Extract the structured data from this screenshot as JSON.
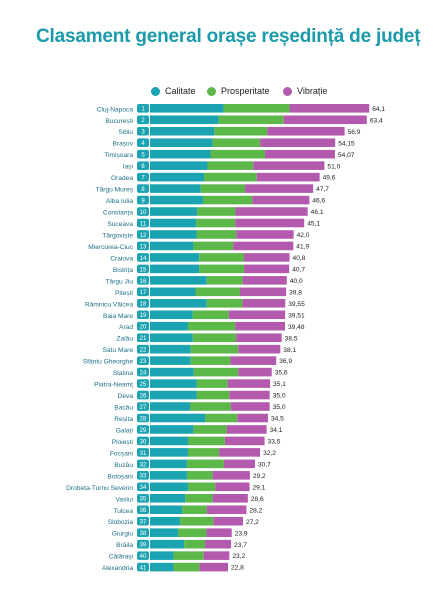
{
  "title": "Clasament general orașe reședință de județ",
  "colors": {
    "title": "#1a9aaa",
    "calitate": "#1ba3b2",
    "prosperitate": "#5db84a",
    "vibratie": "#b45aae",
    "rank_badge": "#1ba3b2"
  },
  "chart_data": {
    "type": "bar",
    "stacked": true,
    "orientation": "horizontal",
    "title": "Clasament general orașe reședință de județ",
    "legend_position": "top",
    "grid": false,
    "series_names": [
      "Calitate",
      "Prosperitate",
      "Vibrație"
    ],
    "rows": [
      {
        "rank": "1",
        "city": "Cluj-Napoca",
        "total": "64,1",
        "calitate": 21.5,
        "prosperitate": 19.3,
        "vibratie": 23.3
      },
      {
        "rank": "2",
        "city": "București",
        "total": "63,4",
        "calitate": 20.1,
        "prosperitate": 19.0,
        "vibratie": 24.3
      },
      {
        "rank": "3",
        "city": "Sibiu",
        "total": "56,9",
        "calitate": 18.8,
        "prosperitate": 15.5,
        "vibratie": 22.6
      },
      {
        "rank": "4",
        "city": "Brașov",
        "total": "54,15",
        "calitate": 18.3,
        "prosperitate": 13.9,
        "vibratie": 21.95
      },
      {
        "rank": "5",
        "city": "Timișoara",
        "total": "54,07",
        "calitate": 17.7,
        "prosperitate": 15.9,
        "vibratie": 20.47
      },
      {
        "rank": "6",
        "city": "Iași",
        "total": "51,0",
        "calitate": 16.8,
        "prosperitate": 13.4,
        "vibratie": 20.8
      },
      {
        "rank": "7",
        "city": "Oradea",
        "total": "49,6",
        "calitate": 15.8,
        "prosperitate": 15.4,
        "vibratie": 18.4
      },
      {
        "rank": "8",
        "city": "Târgu Mureș",
        "total": "47,7",
        "calitate": 14.8,
        "prosperitate": 13.0,
        "vibratie": 19.9
      },
      {
        "rank": "9",
        "city": "Alba Iulia",
        "total": "46,6",
        "calitate": 15.5,
        "prosperitate": 14.4,
        "vibratie": 16.7
      },
      {
        "rank": "10",
        "city": "Constanța",
        "total": "46,1",
        "calitate": 13.8,
        "prosperitate": 11.2,
        "vibratie": 21.1
      },
      {
        "rank": "11",
        "city": "Suceava",
        "total": "45,1",
        "calitate": 13.5,
        "prosperitate": 11.4,
        "vibratie": 20.2
      },
      {
        "rank": "12",
        "city": "Târgoviște",
        "total": "42,0",
        "calitate": 13.6,
        "prosperitate": 11.6,
        "vibratie": 16.8
      },
      {
        "rank": "13",
        "city": "Miercurea-Ciuc",
        "total": "41,9",
        "calitate": 12.7,
        "prosperitate": 11.6,
        "vibratie": 17.6
      },
      {
        "rank": "14",
        "city": "Craiova",
        "total": "40,8",
        "calitate": 14.4,
        "prosperitate": 13.1,
        "vibratie": 13.3
      },
      {
        "rank": "15",
        "city": "Bistrița",
        "total": "40,7",
        "calitate": 14.4,
        "prosperitate": 13.1,
        "vibratie": 13.2
      },
      {
        "rank": "16",
        "city": "Târgu Jiu",
        "total": "40,0",
        "calitate": 16.6,
        "prosperitate": 10.5,
        "vibratie": 12.9
      },
      {
        "rank": "17",
        "city": "Pitești",
        "total": "39,8",
        "calitate": 13.3,
        "prosperitate": 13.0,
        "vibratie": 13.5
      },
      {
        "rank": "18",
        "city": "Râmnicu Vâlcea",
        "total": "39,55",
        "calitate": 16.6,
        "prosperitate": 10.5,
        "vibratie": 12.45
      },
      {
        "rank": "19",
        "city": "Baia Mare",
        "total": "39,51",
        "calitate": 12.5,
        "prosperitate": 10.5,
        "vibratie": 16.51
      },
      {
        "rank": "20",
        "city": "Arad",
        "total": "39,48",
        "calitate": 11.1,
        "prosperitate": 13.8,
        "vibratie": 14.58
      },
      {
        "rank": "21",
        "city": "Zalău",
        "total": "38,5",
        "calitate": 12.5,
        "prosperitate": 12.7,
        "vibratie": 13.3
      },
      {
        "rank": "22",
        "city": "Satu Mare",
        "total": "38,1",
        "calitate": 11.9,
        "prosperitate": 13.9,
        "vibratie": 12.3
      },
      {
        "rank": "23",
        "city": "Sfântu Gheorghe",
        "total": "36,9",
        "calitate": 11.9,
        "prosperitate": 11.6,
        "vibratie": 13.4
      },
      {
        "rank": "24",
        "city": "Slatina",
        "total": "35,6",
        "calitate": 12.8,
        "prosperitate": 13.0,
        "vibratie": 9.8
      },
      {
        "rank": "25",
        "city": "Piatra-Neamț",
        "total": "35,1",
        "calitate": 13.6,
        "prosperitate": 9.1,
        "vibratie": 12.4
      },
      {
        "rank": "26",
        "city": "Deva",
        "total": "35,0",
        "calitate": 13.6,
        "prosperitate": 9.6,
        "vibratie": 11.8
      },
      {
        "rank": "27",
        "city": "Bacău",
        "total": "35,0",
        "calitate": 11.7,
        "prosperitate": 11.9,
        "vibratie": 11.4
      },
      {
        "rank": "28",
        "city": "Reșita",
        "total": "34,5",
        "calitate": 16.2,
        "prosperitate": 9.3,
        "vibratie": 9.0
      },
      {
        "rank": "29",
        "city": "Galați",
        "total": "34,1",
        "calitate": 12.7,
        "prosperitate": 9.7,
        "vibratie": 11.7
      },
      {
        "rank": "30",
        "city": "Ploiești",
        "total": "33,5",
        "calitate": 11.1,
        "prosperitate": 10.8,
        "vibratie": 11.6
      },
      {
        "rank": "31",
        "city": "Focșani",
        "total": "32,2",
        "calitate": 11.1,
        "prosperitate": 9.1,
        "vibratie": 12.0
      },
      {
        "rank": "32",
        "city": "Buzău",
        "total": "30,7",
        "calitate": 10.8,
        "prosperitate": 10.8,
        "vibratie": 9.1
      },
      {
        "rank": "33",
        "city": "Botoșani",
        "total": "29,2",
        "calitate": 10.8,
        "prosperitate": 7.5,
        "vibratie": 10.9
      },
      {
        "rank": "34",
        "city": "Drobeta-Turnu Severin",
        "total": "29,1",
        "calitate": 11.1,
        "prosperitate": 8.0,
        "vibratie": 10.0
      },
      {
        "rank": "35",
        "city": "Vaslui",
        "total": "28,6",
        "calitate": 10.3,
        "prosperitate": 8.0,
        "vibratie": 10.3
      },
      {
        "rank": "36",
        "city": "Tulcea",
        "total": "28,2",
        "calitate": 9.4,
        "prosperitate": 7.2,
        "vibratie": 11.6
      },
      {
        "rank": "37",
        "city": "Slobozia",
        "total": "27,2",
        "calitate": 8.8,
        "prosperitate": 9.7,
        "vibratie": 8.7
      },
      {
        "rank": "38",
        "city": "Giurgiu",
        "total": "23,9",
        "calitate": 8.2,
        "prosperitate": 8.3,
        "vibratie": 7.4
      },
      {
        "rank": "39",
        "city": "Brăila",
        "total": "23,7",
        "calitate": 10.0,
        "prosperitate": 6.1,
        "vibratie": 7.6
      },
      {
        "rank": "40",
        "city": "Călărași",
        "total": "23,2",
        "calitate": 6.9,
        "prosperitate": 8.8,
        "vibratie": 7.5
      },
      {
        "rank": "41",
        "city": "Alexandria",
        "total": "22,8",
        "calitate": 6.9,
        "prosperitate": 7.6,
        "vibratie": 8.3
      }
    ]
  }
}
